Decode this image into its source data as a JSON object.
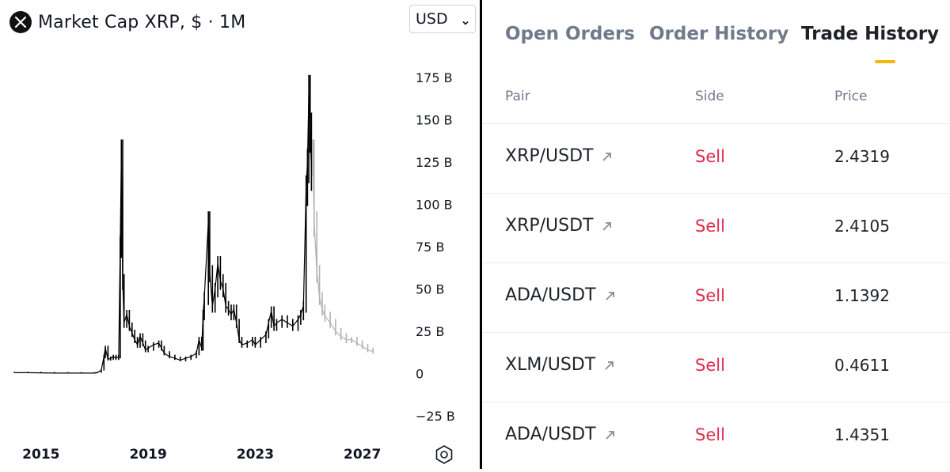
{
  "chart_panel": {
    "title": "Market Cap XRP, $ · 1M",
    "currency": {
      "selected": "USD"
    },
    "icons": {
      "logo": "xrp-logo-icon",
      "currency_chevron": "chevron-down-icon",
      "settings": "settings-hexagon-icon"
    }
  },
  "chart_data": {
    "type": "candlestick",
    "timeframe": "1M",
    "unit": "USD",
    "y_ticks": [
      "175 B",
      "150 B",
      "125 B",
      "100 B",
      "75 B",
      "50 B",
      "25 B",
      "0",
      "−25 B"
    ],
    "y_range": [
      -25,
      175
    ],
    "x_ticks": [
      "2015",
      "2019",
      "2023",
      "2027"
    ],
    "x_range": [
      2014.0,
      2027.6
    ],
    "colors": {
      "historical": "#000000",
      "projection": "#b2b2b2"
    },
    "series": [
      {
        "name": "",
        "style": "solid",
        "points": [
          [
            2014.0,
            0.5
          ],
          [
            2014.5,
            0.5
          ],
          [
            2015.0,
            0.4
          ],
          [
            2015.5,
            0.3
          ],
          [
            2016.0,
            0.3
          ],
          [
            2016.5,
            0.3
          ],
          [
            2017.0,
            0.3
          ],
          [
            2017.1,
            0.5
          ],
          [
            2017.25,
            2.0
          ],
          [
            2017.35,
            10.0
          ],
          [
            2017.4,
            15.0
          ],
          [
            2017.5,
            8.5
          ],
          [
            2017.6,
            9.0
          ],
          [
            2017.7,
            10.0
          ],
          [
            2017.8,
            9.0
          ],
          [
            2017.9,
            10.0
          ],
          [
            2017.96,
            76.0
          ],
          [
            2018.0,
            130.0
          ],
          [
            2018.05,
            55.0
          ],
          [
            2018.1,
            30.0
          ],
          [
            2018.2,
            35.0
          ],
          [
            2018.3,
            28.0
          ],
          [
            2018.4,
            24.0
          ],
          [
            2018.5,
            20.0
          ],
          [
            2018.6,
            17.0
          ],
          [
            2018.7,
            22.0
          ],
          [
            2018.8,
            18.0
          ],
          [
            2018.9,
            14.0
          ],
          [
            2019.0,
            15.0
          ],
          [
            2019.2,
            17.0
          ],
          [
            2019.4,
            18.0
          ],
          [
            2019.5,
            15.0
          ],
          [
            2019.6,
            12.0
          ],
          [
            2019.8,
            10.0
          ],
          [
            2020.0,
            9.0
          ],
          [
            2020.2,
            8.0
          ],
          [
            2020.4,
            9.0
          ],
          [
            2020.6,
            10.0
          ],
          [
            2020.8,
            12.0
          ],
          [
            2020.9,
            20.0
          ],
          [
            2021.0,
            15.0
          ],
          [
            2021.05,
            35.0
          ],
          [
            2021.1,
            45.0
          ],
          [
            2021.25,
            90.0
          ],
          [
            2021.3,
            60.0
          ],
          [
            2021.4,
            40.0
          ],
          [
            2021.5,
            50.0
          ],
          [
            2021.6,
            65.0
          ],
          [
            2021.7,
            55.0
          ],
          [
            2021.8,
            50.0
          ],
          [
            2021.9,
            40.0
          ],
          [
            2022.0,
            38.0
          ],
          [
            2022.1,
            35.0
          ],
          [
            2022.2,
            38.0
          ],
          [
            2022.3,
            30.0
          ],
          [
            2022.4,
            20.0
          ],
          [
            2022.5,
            17.0
          ],
          [
            2022.7,
            18.0
          ],
          [
            2022.9,
            20.0
          ],
          [
            2023.0,
            17.0
          ],
          [
            2023.2,
            20.0
          ],
          [
            2023.4,
            23.0
          ],
          [
            2023.5,
            30.0
          ],
          [
            2023.6,
            37.0
          ],
          [
            2023.7,
            28.0
          ],
          [
            2023.8,
            30.0
          ],
          [
            2024.0,
            32.0
          ],
          [
            2024.2,
            30.0
          ],
          [
            2024.4,
            28.0
          ],
          [
            2024.6,
            32.0
          ],
          [
            2024.7,
            35.0
          ],
          [
            2024.8,
            40.0
          ],
          [
            2024.9,
            110.0
          ],
          [
            2024.95,
            125.0
          ],
          [
            2025.0,
            166.0
          ],
          [
            2025.05,
            145.0
          ],
          [
            2025.1,
            120.0
          ]
        ]
      },
      {
        "name": "",
        "style": "projection",
        "points": [
          [
            2025.15,
            130.0
          ],
          [
            2025.2,
            90.0
          ],
          [
            2025.3,
            60.0
          ],
          [
            2025.4,
            45.0
          ],
          [
            2025.5,
            38.0
          ],
          [
            2025.6,
            34.0
          ],
          [
            2025.8,
            30.0
          ],
          [
            2026.0,
            25.0
          ],
          [
            2026.2,
            22.0
          ],
          [
            2026.4,
            20.0
          ],
          [
            2026.6,
            20.0
          ],
          [
            2026.8,
            18.0
          ],
          [
            2027.0,
            16.0
          ],
          [
            2027.2,
            14.0
          ],
          [
            2027.4,
            13.0
          ]
        ]
      }
    ]
  },
  "trade_panel": {
    "tabs": [
      {
        "label": "Open Orders",
        "active": false
      },
      {
        "label": "Order History",
        "active": false
      },
      {
        "label": "Trade History",
        "active": true
      }
    ],
    "columns": {
      "pair": "Pair",
      "side": "Side",
      "price": "Price"
    },
    "rows": [
      {
        "pair": "XRP/USDT",
        "side": "Sell",
        "price": "2.4319"
      },
      {
        "pair": "XRP/USDT",
        "side": "Sell",
        "price": "2.4105"
      },
      {
        "pair": "ADA/USDT",
        "side": "Sell",
        "price": "1.1392"
      },
      {
        "pair": "XLM/USDT",
        "side": "Sell",
        "price": "0.4611"
      },
      {
        "pair": "ADA/USDT",
        "side": "Sell",
        "price": "1.4351"
      }
    ],
    "colors": {
      "sell": "#e0294a",
      "accent": "#f0b90b",
      "muted": "#707a8a"
    },
    "icons": {
      "pair_link": "arrow-up-right-icon"
    }
  }
}
